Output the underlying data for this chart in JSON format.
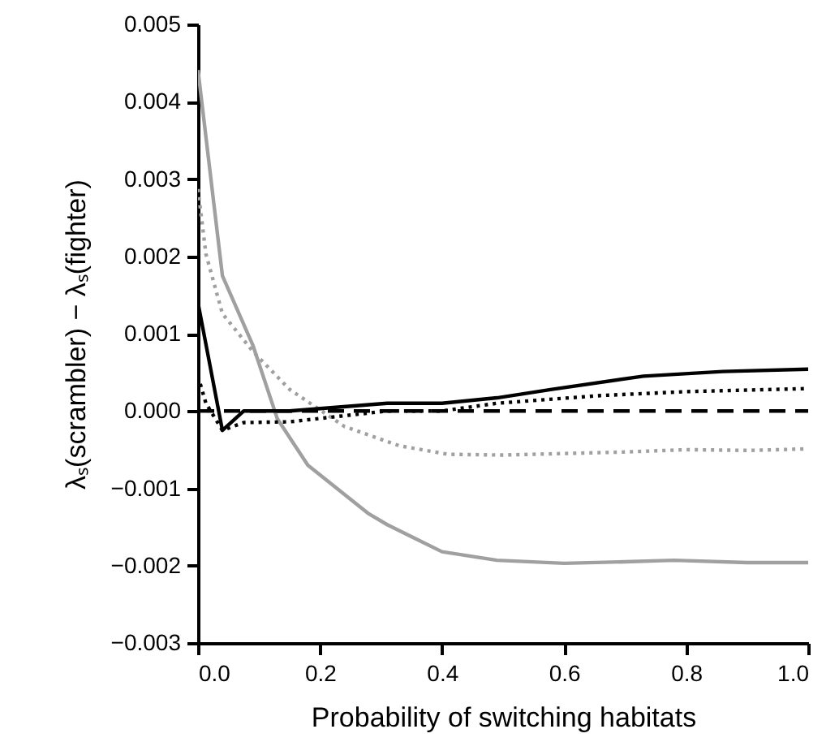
{
  "chart_data": {
    "type": "line",
    "xlabel": "Probability of switching habitats",
    "ylabel": "λₛ(scrambler) − λₛ(fighter)",
    "xlim": [
      0,
      1
    ],
    "ylim": [
      -0.003,
      0.005
    ],
    "xticks": [
      {
        "value": 0,
        "label": "0.0"
      },
      {
        "value": 0.2,
        "label": "0.2"
      },
      {
        "value": 0.4,
        "label": "0.4"
      },
      {
        "value": 0.6,
        "label": "0.6"
      },
      {
        "value": 0.8,
        "label": "0.8"
      },
      {
        "value": 1,
        "label": "1.0"
      }
    ],
    "yticks": [
      {
        "value": -0.003,
        "label": "−0.003"
      },
      {
        "value": -0.002,
        "label": "−0.002"
      },
      {
        "value": -0.001,
        "label": "−0.001"
      },
      {
        "value": 0,
        "label": "0.000"
      },
      0.001,
      0.002,
      0.003,
      0.004,
      0.005
    ],
    "grid": false,
    "marker": "none",
    "series": [
      {
        "color": "#000000",
        "line_style": "dashed",
        "x": [
          0.0,
          1.0
        ],
        "values": [
          0,
          0
        ]
      },
      {
        "color": "#a0a0a0",
        "line_style": "solid",
        "x": [
          0.0,
          0.04,
          0.09,
          0.13,
          0.18,
          0.28,
          0.31,
          0.4,
          0.49,
          0.6,
          0.7,
          0.78,
          0.9,
          1.0
        ],
        "values": [
          0.00441,
          0.00175,
          0.00085,
          -0.0001,
          -0.0007,
          -0.00133,
          -0.00147,
          -0.00182,
          -0.00193,
          -0.00197,
          -0.00195,
          -0.00193,
          -0.00196,
          -0.00196
        ]
      },
      {
        "color": "#a0a0a0",
        "line_style": "dotted",
        "x": [
          0.0,
          0.013,
          0.04,
          0.09,
          0.15,
          0.24,
          0.33,
          0.41,
          0.5,
          0.6,
          0.7,
          0.8,
          0.9,
          1.0
        ],
        "values": [
          0.00287,
          0.00203,
          0.00126,
          0.00077,
          0.00028,
          -0.0002,
          -0.00045,
          -0.00056,
          -0.00057,
          -0.00055,
          -0.00053,
          -0.0005,
          -0.00051,
          -0.00049
        ]
      },
      {
        "color": "#000000",
        "line_style": "dotted",
        "x": [
          0.0,
          0.013,
          0.04,
          0.075,
          0.15,
          0.31,
          0.4,
          0.49,
          0.66,
          0.8,
          1.0
        ],
        "values": [
          0.00045,
          0.0001,
          -0.00025,
          -0.00015,
          -0.00014,
          0.0,
          0.0,
          0.0001,
          0.0002,
          0.00025,
          0.00029
        ]
      },
      {
        "color": "#000000",
        "line_style": "solid",
        "x": [
          0.0,
          0.04,
          0.075,
          0.1,
          0.12,
          0.15,
          0.31,
          0.4,
          0.49,
          0.58,
          0.73,
          0.86,
          1.0
        ],
        "values": [
          0.0014,
          -0.00025,
          0.0,
          0.0,
          0.0,
          0.0,
          0.0001,
          0.0001,
          0.00017,
          0.00028,
          0.00045,
          0.00051,
          0.00054
        ]
      }
    ]
  }
}
